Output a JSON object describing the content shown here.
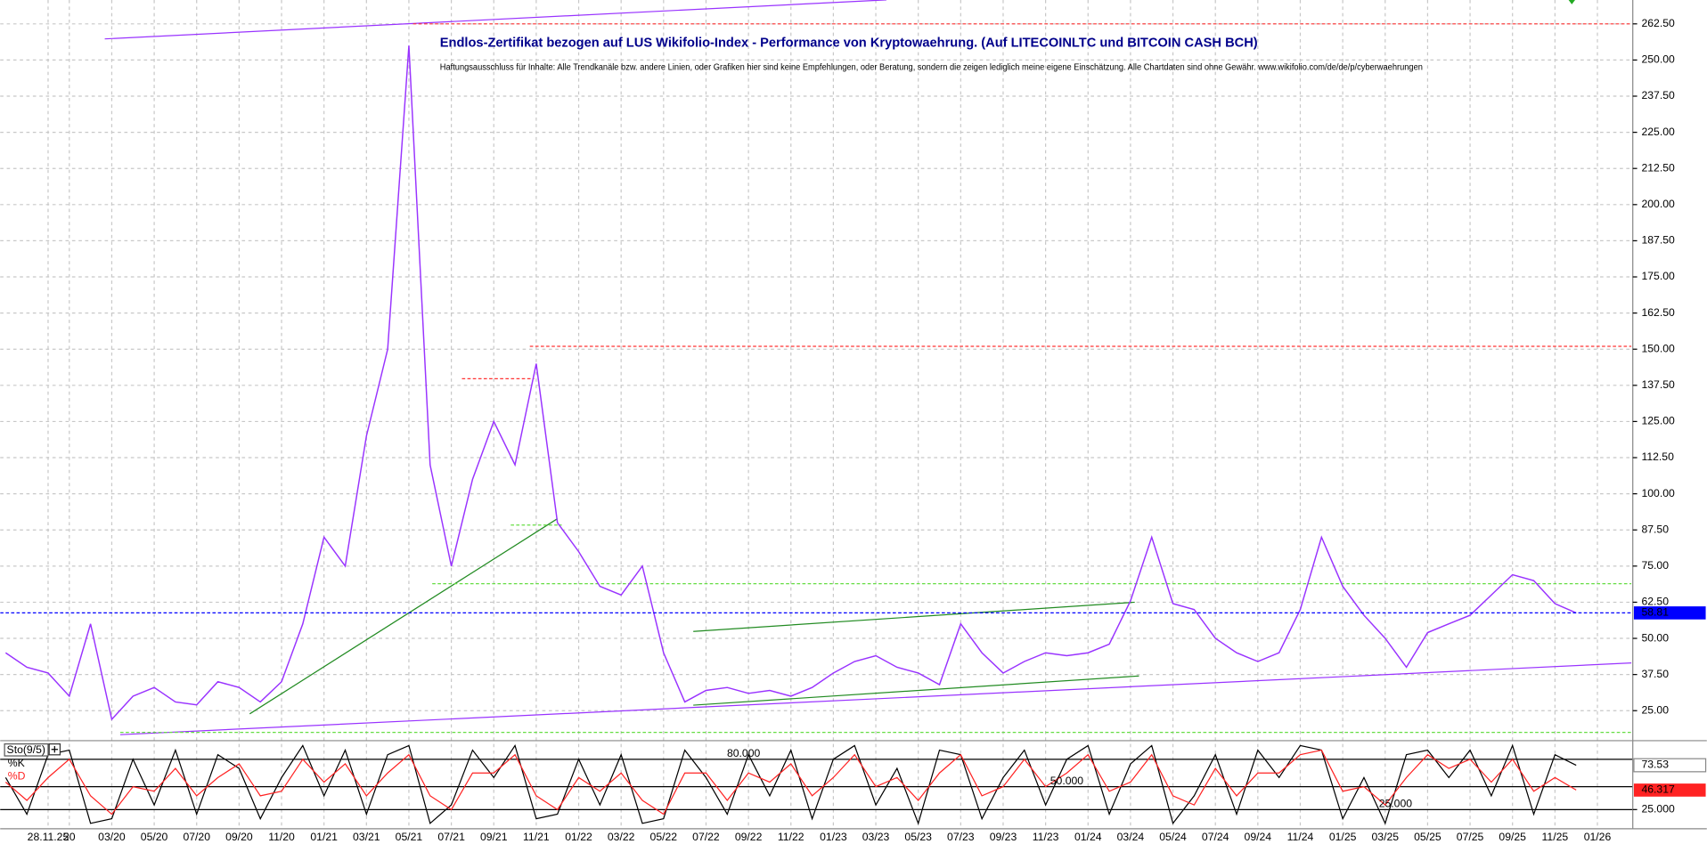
{
  "chart_data": [
    {
      "type": "line",
      "title": "Endlos-Zertifikat bezogen auf LUS Wikifolio-Index - Performance von Kryptowaehrung. (Auf LITECOINLTC und BITCOIN CASH BCH)",
      "subtitle": "Haftungsausschluss für Inhalte: Alle Trendkanäle bzw. andere Linien, oder Grafiken hier sind keine Empfehlungen, oder Beratung, sondern die zeigen lediglich meine eigene Einschätzung. Alle Chartdaten sind ohne Gewähr.  www.wikifolio.com/de/de/p/cyberwaehrungen",
      "categories": [
        null,
        null,
        "28.11.25",
        "20",
        null,
        "03/20",
        null,
        "05/20",
        null,
        "07/20",
        null,
        "09/20",
        null,
        "11/20",
        null,
        "01/21",
        null,
        "03/21",
        null,
        "05/21",
        null,
        "07/21",
        null,
        "09/21",
        null,
        "11/21",
        null,
        "01/22",
        null,
        "03/22",
        null,
        "05/22",
        null,
        "07/22",
        null,
        "09/22",
        null,
        "11/22",
        null,
        "01/23",
        null,
        "03/23",
        null,
        "05/23",
        null,
        "07/23",
        null,
        "09/23",
        null,
        "11/23",
        null,
        "01/24",
        null,
        "03/24",
        null,
        "05/24",
        null,
        "07/24",
        null,
        "09/24",
        null,
        "11/24",
        null,
        "01/25",
        null,
        "03/25",
        null,
        "05/25",
        null,
        "07/25",
        null,
        "09/25",
        null,
        "11/25",
        null,
        "01/26"
      ],
      "series": [
        {
          "color": "#9933ff",
          "values": [
            45,
            40,
            38,
            30,
            55,
            22,
            30,
            33,
            28,
            27,
            35,
            33,
            28,
            35,
            55,
            85,
            75,
            120,
            150,
            255,
            110,
            75,
            105,
            125,
            110,
            145,
            90,
            80,
            68,
            65,
            75,
            45,
            28,
            32,
            33,
            31,
            32,
            30,
            33,
            38,
            42,
            44,
            40,
            38,
            34,
            55,
            45,
            38,
            42,
            45,
            44,
            45,
            48,
            63,
            85,
            62,
            60,
            50,
            45,
            42,
            45,
            60,
            85,
            68,
            58,
            50,
            40,
            52,
            55,
            58,
            65,
            72,
            70,
            62,
            58.81,
            null
          ]
        }
      ],
      "ylim": [
        15,
        270
      ],
      "yticks": [
        {
          "value": 25,
          "label": "25.00"
        },
        {
          "value": 37.5,
          "label": "37.50"
        },
        {
          "value": 50,
          "label": "50.00"
        },
        {
          "value": 62.5,
          "label": "62.50"
        },
        {
          "value": 75,
          "label": "75.00"
        },
        {
          "value": 87.5,
          "label": "87.50"
        },
        {
          "value": 100,
          "label": "100.00"
        },
        {
          "value": 112.5,
          "label": "112.50"
        },
        {
          "value": 125,
          "label": "125.00"
        },
        {
          "value": 137.5,
          "label": "137.50"
        },
        {
          "value": 150,
          "label": "150.00"
        },
        {
          "value": 162.5,
          "label": "162.50"
        },
        {
          "value": 175,
          "label": "175.00"
        },
        {
          "value": 187.5,
          "label": "187.50"
        },
        {
          "value": 200,
          "label": "200.00"
        },
        {
          "value": 212.5,
          "label": "212.50"
        },
        {
          "value": 225,
          "label": "225.00"
        },
        {
          "value": 237.5,
          "label": "237.50"
        },
        {
          "value": 250,
          "label": "250.00"
        },
        {
          "value": 262.5,
          "label": "262.50"
        }
      ],
      "grid": true,
      "last_value_color": "#0000ff",
      "lines": [
        {
          "color": "#9933ff",
          "dash": false,
          "x": [
            4.67,
            41.5
          ],
          "y": [
            257.3,
            270.8
          ]
        },
        {
          "color": "#9933ff",
          "dash": false,
          "x": [
            5.4,
            76.6
          ],
          "y": [
            16.7,
            41.5
          ]
        },
        {
          "color": "#228b22",
          "dash": false,
          "x": [
            11.5,
            26
          ],
          "y": [
            23.9,
            91.4
          ]
        },
        {
          "color": "#228b22",
          "dash": false,
          "x": [
            32.4,
            53.2
          ],
          "y": [
            52.4,
            62.5
          ]
        },
        {
          "color": "#228b22",
          "dash": false,
          "x": [
            32.4,
            53.4
          ],
          "y": [
            26.9,
            37
          ]
        },
        {
          "color": "#ff3333",
          "dash": true,
          "x": [
            19.2,
            76.6
          ],
          "y": [
            262.5,
            262.5
          ]
        },
        {
          "color": "#ff3333",
          "dash": true,
          "x": [
            24.7,
            76.6
          ],
          "y": [
            151,
            151
          ]
        },
        {
          "color": "#ff3333",
          "dash": true,
          "x": [
            21.5,
            24.9
          ],
          "y": [
            139.8,
            139.8
          ]
        },
        {
          "color": "#66dd44",
          "dash": true,
          "x": [
            23.8,
            26.2
          ],
          "y": [
            89.2,
            89.2
          ]
        },
        {
          "color": "#66dd44",
          "dash": true,
          "x": [
            20.1,
            76.6
          ],
          "y": [
            68.9,
            68.9
          ]
        },
        {
          "color": "#66dd44",
          "dash": true,
          "x": [
            5.4,
            76.6
          ],
          "y": [
            17.5,
            17.5
          ]
        }
      ]
    },
    {
      "type": "line",
      "title": "Sto(9/5)",
      "series": [
        {
          "name": "%K",
          "color": "#000000",
          "values": [
            60,
            20,
            85,
            90,
            10,
            15,
            80,
            30,
            90,
            20,
            85,
            70,
            15,
            60,
            95,
            40,
            90,
            20,
            85,
            95,
            10,
            30,
            90,
            60,
            95,
            15,
            20,
            80,
            30,
            85,
            10,
            15,
            90,
            60,
            20,
            85,
            40,
            90,
            15,
            80,
            95,
            30,
            70,
            10,
            90,
            85,
            15,
            60,
            90,
            30,
            80,
            95,
            20,
            75,
            95,
            10,
            40,
            85,
            20,
            90,
            60,
            95,
            90,
            15,
            60,
            10,
            85,
            90,
            60,
            90,
            40,
            95,
            20,
            85,
            73.53,
            null
          ]
        },
        {
          "name": "%D",
          "color": "#ff2222",
          "values": [
            55,
            35,
            60,
            80,
            40,
            20,
            50,
            45,
            70,
            40,
            60,
            75,
            40,
            45,
            80,
            55,
            75,
            40,
            65,
            85,
            40,
            25,
            65,
            65,
            85,
            40,
            25,
            60,
            45,
            65,
            35,
            20,
            65,
            65,
            35,
            65,
            55,
            75,
            40,
            60,
            85,
            50,
            60,
            35,
            65,
            85,
            40,
            50,
            80,
            50,
            65,
            85,
            45,
            55,
            85,
            40,
            30,
            70,
            40,
            65,
            65,
            85,
            90,
            45,
            50,
            30,
            60,
            85,
            70,
            80,
            55,
            80,
            45,
            60,
            46.317,
            null
          ]
        }
      ],
      "ylim": [
        4,
        98
      ],
      "levels": [
        {
          "value": 80,
          "label": "80.000"
        },
        {
          "value": 50,
          "label": "50.000"
        },
        {
          "value": 25,
          "label": "25.000"
        }
      ],
      "yticks": [
        {
          "value": 25,
          "label": "25.000"
        }
      ]
    }
  ]
}
